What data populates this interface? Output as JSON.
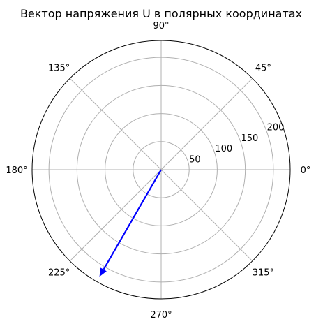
{
  "chart_data": {
    "type": "polar",
    "title": "Вектор напряжения U в полярных координатах",
    "angular_ticks": [
      {
        "angle": 0,
        "label": "0°"
      },
      {
        "angle": 45,
        "label": "45°"
      },
      {
        "angle": 90,
        "label": "90°"
      },
      {
        "angle": 135,
        "label": "135°"
      },
      {
        "angle": 180,
        "label": "180°"
      },
      {
        "angle": 225,
        "label": "225°"
      },
      {
        "angle": 270,
        "label": "270°"
      },
      {
        "angle": 315,
        "label": "315°"
      }
    ],
    "radial_ticks": [
      {
        "value": 50,
        "label": "50"
      },
      {
        "value": 100,
        "label": "100"
      },
      {
        "value": 150,
        "label": "150"
      },
      {
        "value": 200,
        "label": "200"
      }
    ],
    "rlim": [
      0,
      230
    ],
    "grid": true,
    "series": [
      {
        "kind": "arrow",
        "from": {
          "theta_deg": 0,
          "r": 0
        },
        "to": {
          "theta_deg": 240,
          "r": 220
        },
        "color": "#0000ff"
      }
    ],
    "colors": {
      "grid": "#b0b0b0",
      "frame": "#000000",
      "arrow": "#0000ff"
    }
  }
}
